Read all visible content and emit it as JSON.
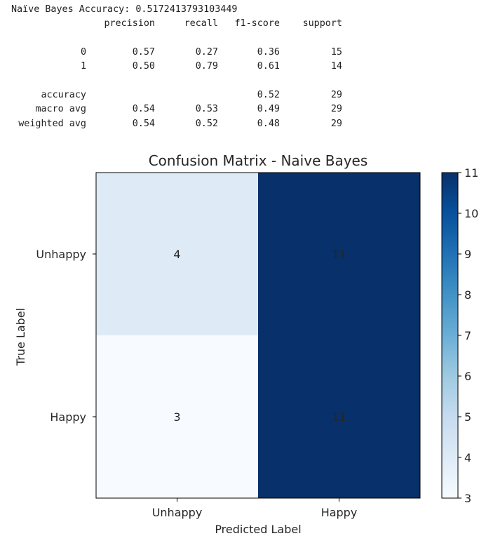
{
  "report": {
    "accuracy_line": "Naïve Bayes Accuracy: 0.5172413793103449",
    "headers": [
      "precision",
      "recall",
      "f1-score",
      "support"
    ],
    "rows": [
      {
        "label": "0",
        "precision": "0.57",
        "recall": "0.27",
        "f1": "0.36",
        "support": "15"
      },
      {
        "label": "1",
        "precision": "0.50",
        "recall": "0.79",
        "f1": "0.61",
        "support": "14"
      },
      {
        "label": "accuracy",
        "precision": "",
        "recall": "",
        "f1": "0.52",
        "support": "29"
      },
      {
        "label": "macro avg",
        "precision": "0.54",
        "recall": "0.53",
        "f1": "0.49",
        "support": "29"
      },
      {
        "label": "weighted avg",
        "precision": "0.54",
        "recall": "0.52",
        "f1": "0.48",
        "support": "29"
      }
    ]
  },
  "chart_data": {
    "type": "heatmap",
    "title": "Confusion Matrix - Naive Bayes",
    "xlabel": "Predicted Label",
    "ylabel": "True Label",
    "x_categories": [
      "Unhappy",
      "Happy"
    ],
    "y_categories": [
      "Unhappy",
      "Happy"
    ],
    "values": [
      [
        4,
        11
      ],
      [
        3,
        11
      ]
    ],
    "colormap": "Blues",
    "colorbar": {
      "min": 3,
      "max": 11,
      "ticks": [
        3,
        4,
        5,
        6,
        7,
        8,
        9,
        10,
        11
      ]
    },
    "grid": false
  }
}
